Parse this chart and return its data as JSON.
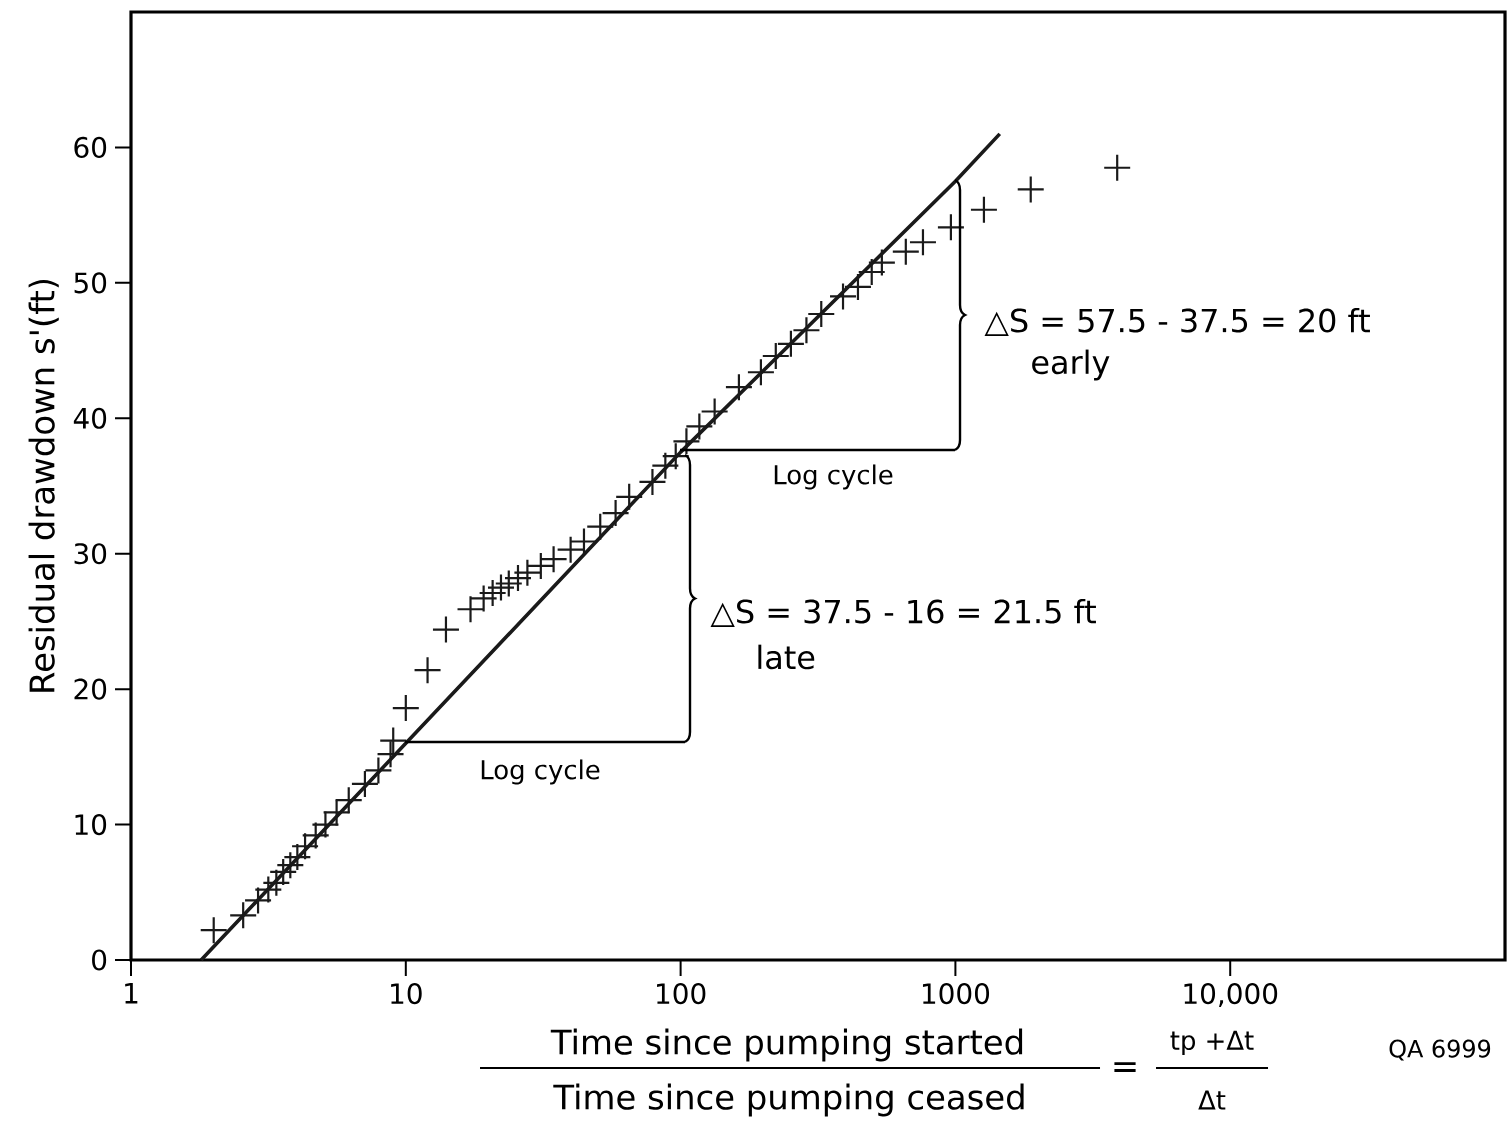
{
  "chart_data": {
    "type": "scatter",
    "xlabel": "Time since pumping started",
    "ylabel": "Residual drawdown s'(ft)",
    "xlim": [
      1,
      100000
    ],
    "ylim": [
      0,
      70
    ],
    "xticks": [
      1,
      10,
      100,
      1000,
      {
        "value": 10000,
        "label": "10,000"
      }
    ],
    "yticks": [
      0,
      10,
      20,
      30,
      40,
      50,
      60
    ],
    "log": "x",
    "grid": false,
    "marker": "cross",
    "series": [
      {
        "color": "#1a1a1a",
        "x": [
          2.0,
          2.56,
          2.9,
          3.16,
          3.38,
          3.58,
          3.8,
          4.03,
          4.3,
          4.7,
          5.1,
          5.6,
          6.2,
          7.1,
          7.95,
          8.8,
          9.0,
          10.0,
          12.0,
          14.0,
          17.2,
          19.2,
          20.7,
          22.2,
          23.7,
          25.6,
          27.7,
          31,
          34.5,
          39.8,
          44.5,
          51,
          58,
          65,
          79,
          88,
          96,
          105,
          117,
          133,
          163,
          196,
          222,
          252,
          287,
          325,
          390,
          442,
          496,
          540,
          660,
          762,
          963,
          1270,
          1880,
          3880
        ],
        "values": [
          2.2,
          3.3,
          4.4,
          5.2,
          5.7,
          6.5,
          7.0,
          7.6,
          8.4,
          9.2,
          10.0,
          10.9,
          11.8,
          13.0,
          14.0,
          15.2,
          16.2,
          18.6,
          21.4,
          24.4,
          25.9,
          26.7,
          27.1,
          27.5,
          27.8,
          28.2,
          28.6,
          29.1,
          29.6,
          30.3,
          30.9,
          32.0,
          33.0,
          34.2,
          35.3,
          36.5,
          37.2,
          38.3,
          39.4,
          40.5,
          42.3,
          43.4,
          44.6,
          45.5,
          46.5,
          47.7,
          49.0,
          49.7,
          50.8,
          51.5,
          52.3,
          53.0,
          54.1,
          55.4,
          56.9,
          58.5
        ]
      },
      {
        "type": "line",
        "color": "#1a1a1a",
        "marker": "none",
        "line_style": "solid",
        "x": [
          1.8,
          10,
          100,
          1000,
          1450
        ],
        "values": [
          0,
          16,
          37.5,
          57.5,
          61
        ]
      }
    ],
    "annotations": [
      "Log cycle",
      "Log cycle",
      "△S = 57.5 - 37.5 = 20 ft",
      "early",
      "△S = 37.5 - 16 = 21.5 ft",
      "late",
      "Time since pumping ceased",
      "=",
      "tp +Δt",
      "Δt",
      "QA 6999"
    ]
  }
}
